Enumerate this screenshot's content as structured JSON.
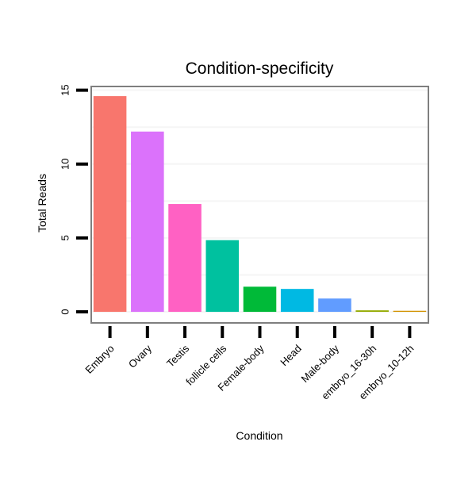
{
  "chart_data": {
    "type": "bar",
    "title": "Condition-specificity",
    "xlabel": "Condition",
    "ylabel": "Total Reads",
    "categories": [
      "Embryo",
      "Ovary",
      "Testis",
      "follicle cells",
      "Female-body",
      "Head",
      "Male-body",
      "embryo_16-30h",
      "embryo_10-12h"
    ],
    "values": [
      14.6,
      12.2,
      7.3,
      4.85,
      1.7,
      1.55,
      0.9,
      0.1,
      0.07
    ],
    "colors": [
      "#F8766D",
      "#DB72FB",
      "#FF61C3",
      "#00C19F",
      "#00BA38",
      "#00B9E3",
      "#619CFF",
      "#93AA00",
      "#D39200"
    ],
    "ylim": [
      -0.75,
      15.25
    ],
    "yticks": [
      0,
      5,
      10,
      15
    ],
    "ytick_labels": [
      "0",
      "5",
      "10",
      "15"
    ],
    "grid": true,
    "legend": "none",
    "panel_border_color": "#7f7f7f",
    "grid_color": "#f5f5f5"
  }
}
